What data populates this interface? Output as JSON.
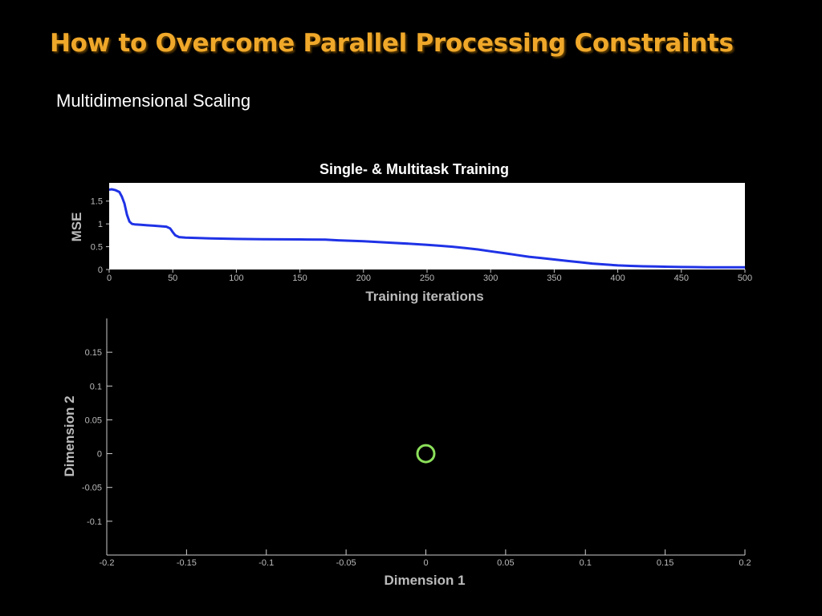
{
  "slide": {
    "title": "How to Overcome Parallel Processing Constraints",
    "subtitle": "Multidimensional Scaling"
  },
  "colors": {
    "title": "#F0A82A",
    "line_series": "#1F32E6",
    "marker": "#8CE05A",
    "axis_text": "#BBBBBB"
  },
  "chart_data": [
    {
      "type": "line",
      "title": "Single- & Multitask Training",
      "xlabel": "Training iterations",
      "ylabel": "MSE",
      "xlim": [
        0,
        500
      ],
      "ylim": [
        0,
        1.9
      ],
      "xticks": [
        0,
        50,
        100,
        150,
        200,
        250,
        300,
        350,
        400,
        450,
        500
      ],
      "yticks": [
        0,
        0.5,
        1,
        1.5
      ],
      "ytick_labels": [
        "0",
        "0.5",
        "1",
        "1.5"
      ],
      "grid": false,
      "series": [
        {
          "x": [
            0,
            2,
            5,
            8,
            10,
            12,
            14,
            16,
            18,
            20,
            25,
            30,
            35,
            40,
            45,
            48,
            50,
            52,
            55,
            60,
            70,
            80,
            100,
            120,
            150,
            170,
            180,
            200,
            220,
            240,
            250,
            260,
            270,
            280,
            290,
            300,
            310,
            320,
            330,
            340,
            350,
            360,
            370,
            380,
            390,
            400,
            410,
            420,
            430,
            440,
            450,
            460,
            470,
            480,
            490,
            500
          ],
          "y": [
            1.75,
            1.76,
            1.74,
            1.7,
            1.6,
            1.45,
            1.2,
            1.05,
            1.0,
            0.99,
            0.98,
            0.97,
            0.96,
            0.95,
            0.94,
            0.9,
            0.82,
            0.75,
            0.71,
            0.7,
            0.69,
            0.68,
            0.67,
            0.665,
            0.66,
            0.655,
            0.64,
            0.62,
            0.59,
            0.56,
            0.54,
            0.52,
            0.5,
            0.47,
            0.44,
            0.4,
            0.36,
            0.32,
            0.28,
            0.25,
            0.22,
            0.19,
            0.16,
            0.13,
            0.11,
            0.09,
            0.08,
            0.07,
            0.065,
            0.06,
            0.055,
            0.052,
            0.05,
            0.05,
            0.05,
            0.05
          ]
        }
      ]
    },
    {
      "type": "scatter",
      "xlabel": "Dimension 1",
      "ylabel": "Dimension 2",
      "xlim": [
        -0.2,
        0.2
      ],
      "ylim": [
        -0.15,
        0.2
      ],
      "xticks": [
        -0.2,
        -0.15,
        -0.1,
        -0.05,
        0,
        0.05,
        0.1,
        0.15,
        0.2
      ],
      "xtick_labels": [
        "-0.2",
        "-0.15",
        "-0.1",
        "-0.05",
        "0",
        "0.05",
        "0.1",
        "0.15",
        "0.2"
      ],
      "yticks": [
        -0.1,
        -0.05,
        0,
        0.05,
        0.1,
        0.15
      ],
      "ytick_labels": [
        "-0.1",
        "-0.05",
        "0",
        "0.05",
        "0.1",
        "0.15"
      ],
      "grid": false,
      "points": [
        {
          "x": 0,
          "y": 0
        }
      ]
    }
  ]
}
